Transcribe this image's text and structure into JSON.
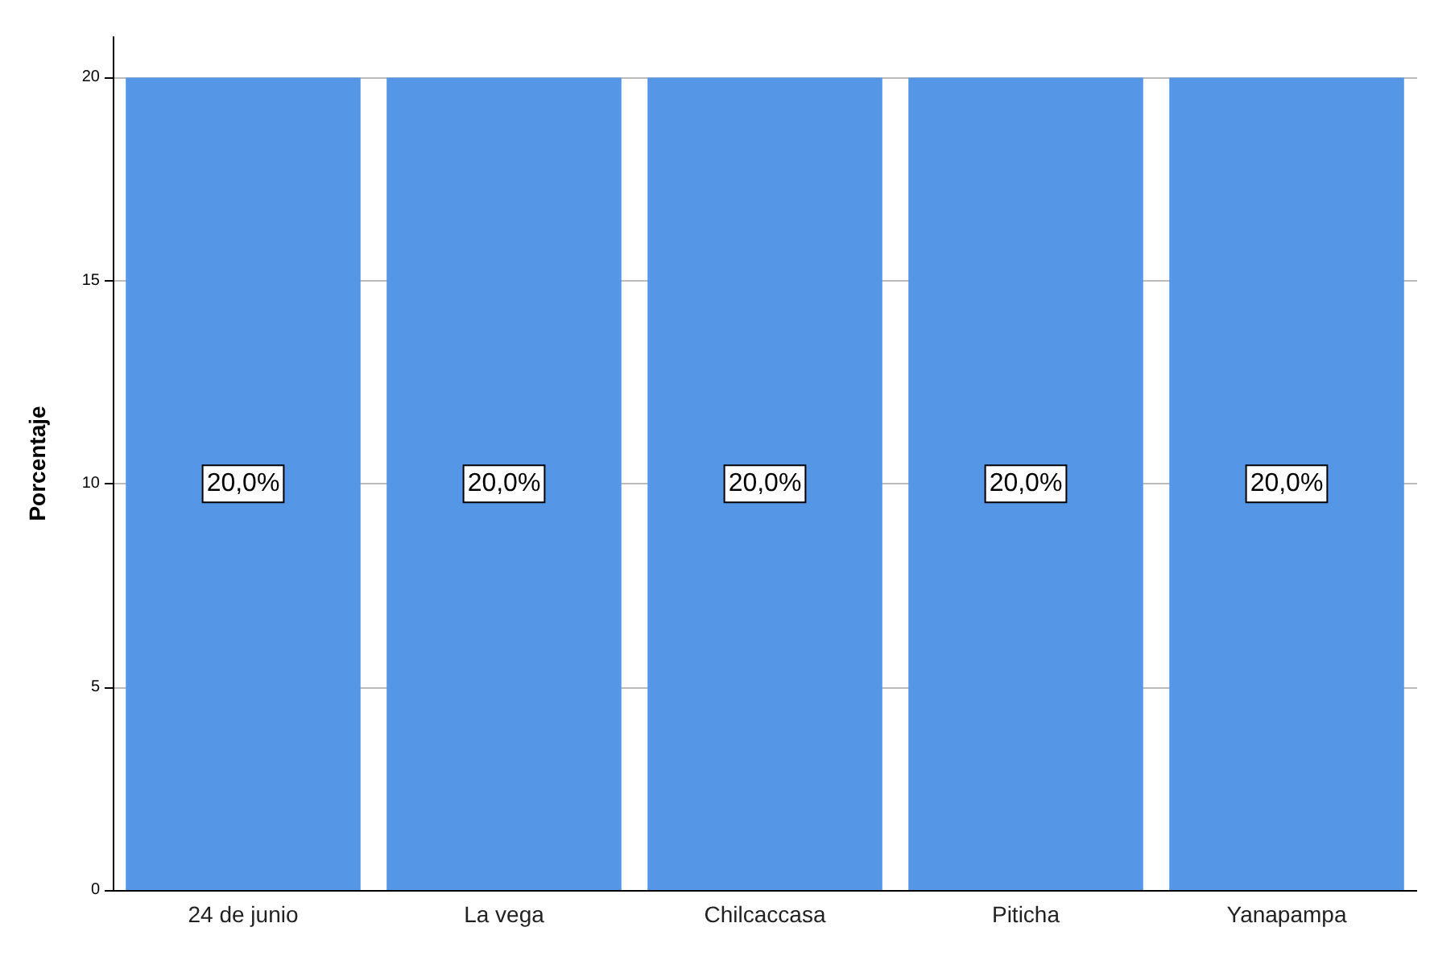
{
  "chart_data": {
    "type": "bar",
    "ylabel": "Porcentaje",
    "categories": [
      "24 de junio",
      "La vega",
      "Chilcaccasa",
      "Piticha",
      "Yanapampa"
    ],
    "values": [
      20,
      20,
      20,
      20,
      20
    ],
    "value_labels": [
      "20,0%",
      "20,0%",
      "20,0%",
      "20,0%",
      "20,0%"
    ],
    "color": "#5596e6",
    "ylim": [
      0,
      21
    ],
    "yticks": [
      0,
      5,
      10,
      15,
      20
    ],
    "grid": "y"
  }
}
